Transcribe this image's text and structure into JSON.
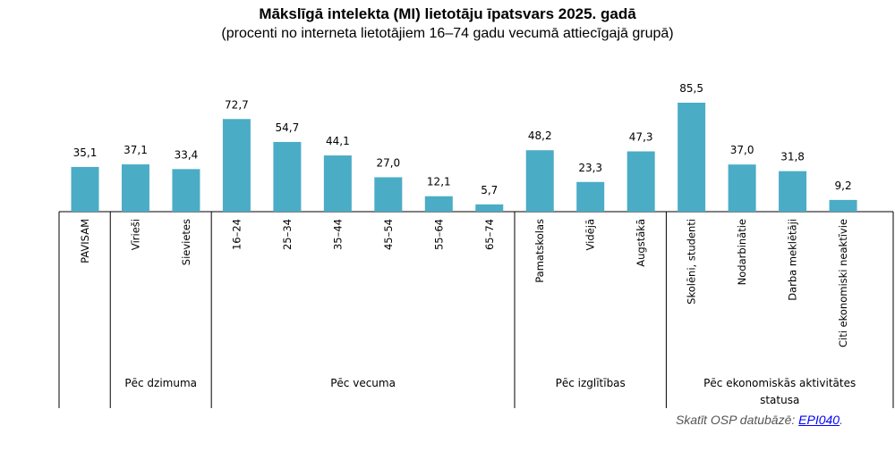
{
  "chart_data": {
    "type": "bar",
    "title": "Mākslīgā intelekta (MI) lietotāju īpatsvars 2025. gadā",
    "subtitle": "(procenti no interneta lietotājiem 16–74 gadu vecumā attiecīgajā grupā)",
    "categories": [
      "PAVISAM",
      "Vīrieši",
      "Sievietes",
      "16–24",
      "25–34",
      "35–44",
      "45–54",
      "55–64",
      "65–74",
      "Pamatskolas",
      "Vidējā",
      "Augstākā",
      "Skolēni, studenti",
      "Nodarbinātie",
      "Darba meklētāji",
      "Citi ekonomiski neaktīvie"
    ],
    "values": [
      35.1,
      37.1,
      33.4,
      72.7,
      54.7,
      44.1,
      27.0,
      12.1,
      5.7,
      48.2,
      23.3,
      47.3,
      85.5,
      37.0,
      31.8,
      9.2
    ],
    "value_labels": [
      "35,1",
      "37,1",
      "33,4",
      "72,7",
      "54,7",
      "44,1",
      "27,0",
      "12,1",
      "5,7",
      "48,2",
      "23,3",
      "47,3",
      "85,5",
      "37,0",
      "31,8",
      "9,2"
    ],
    "groups": [
      {
        "label": "",
        "start": 0,
        "count": 1
      },
      {
        "label": "Pēc dzimuma",
        "start": 1,
        "count": 2
      },
      {
        "label": "Pēc vecuma",
        "start": 3,
        "count": 6
      },
      {
        "label": "Pēc izglītības",
        "start": 9,
        "count": 3
      },
      {
        "label": "Pēc ekonomiskās aktivitātes statusa",
        "start": 12,
        "count": 4
      }
    ],
    "ylim": [
      0,
      90
    ],
    "grid": false,
    "bar_color": "#4BACC6"
  },
  "source": {
    "text": "Skatīt OSP datubāzē: ",
    "link": "EPI040",
    "end": "."
  }
}
